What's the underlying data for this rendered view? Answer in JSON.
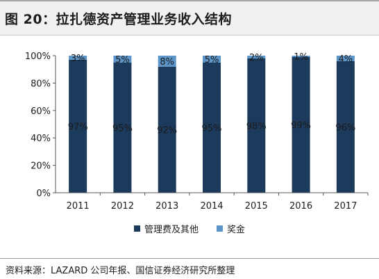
{
  "header": {
    "title": "图 20：拉扎德资产管理业务收入结构"
  },
  "footer": {
    "source": "资料来源：LAZARD 公司年报、国信证券经济研究所整理"
  },
  "colors": {
    "management_fee": "#1b3a5c",
    "bonus": "#5b95c9"
  },
  "chart_data": {
    "type": "bar",
    "stacked": true,
    "categories": [
      "2011",
      "2012",
      "2013",
      "2014",
      "2015",
      "2016",
      "2017"
    ],
    "series": [
      {
        "name": "管理费及其他",
        "values": [
          97,
          95,
          92,
          95,
          98,
          99,
          96
        ],
        "labels": [
          "97%",
          "95%",
          "92%",
          "95%",
          "98%",
          "99%",
          "96%"
        ]
      },
      {
        "name": "奖金",
        "values": [
          3,
          5,
          8,
          5,
          2,
          1,
          4
        ],
        "labels": [
          "3%",
          "5%",
          "8%",
          "5%",
          "2%",
          "1%",
          "4%"
        ]
      }
    ],
    "yticks": [
      "0%",
      "20%",
      "40%",
      "60%",
      "80%",
      "100%"
    ],
    "ylim": [
      0,
      100
    ],
    "legend": "bottom",
    "grid": false
  }
}
